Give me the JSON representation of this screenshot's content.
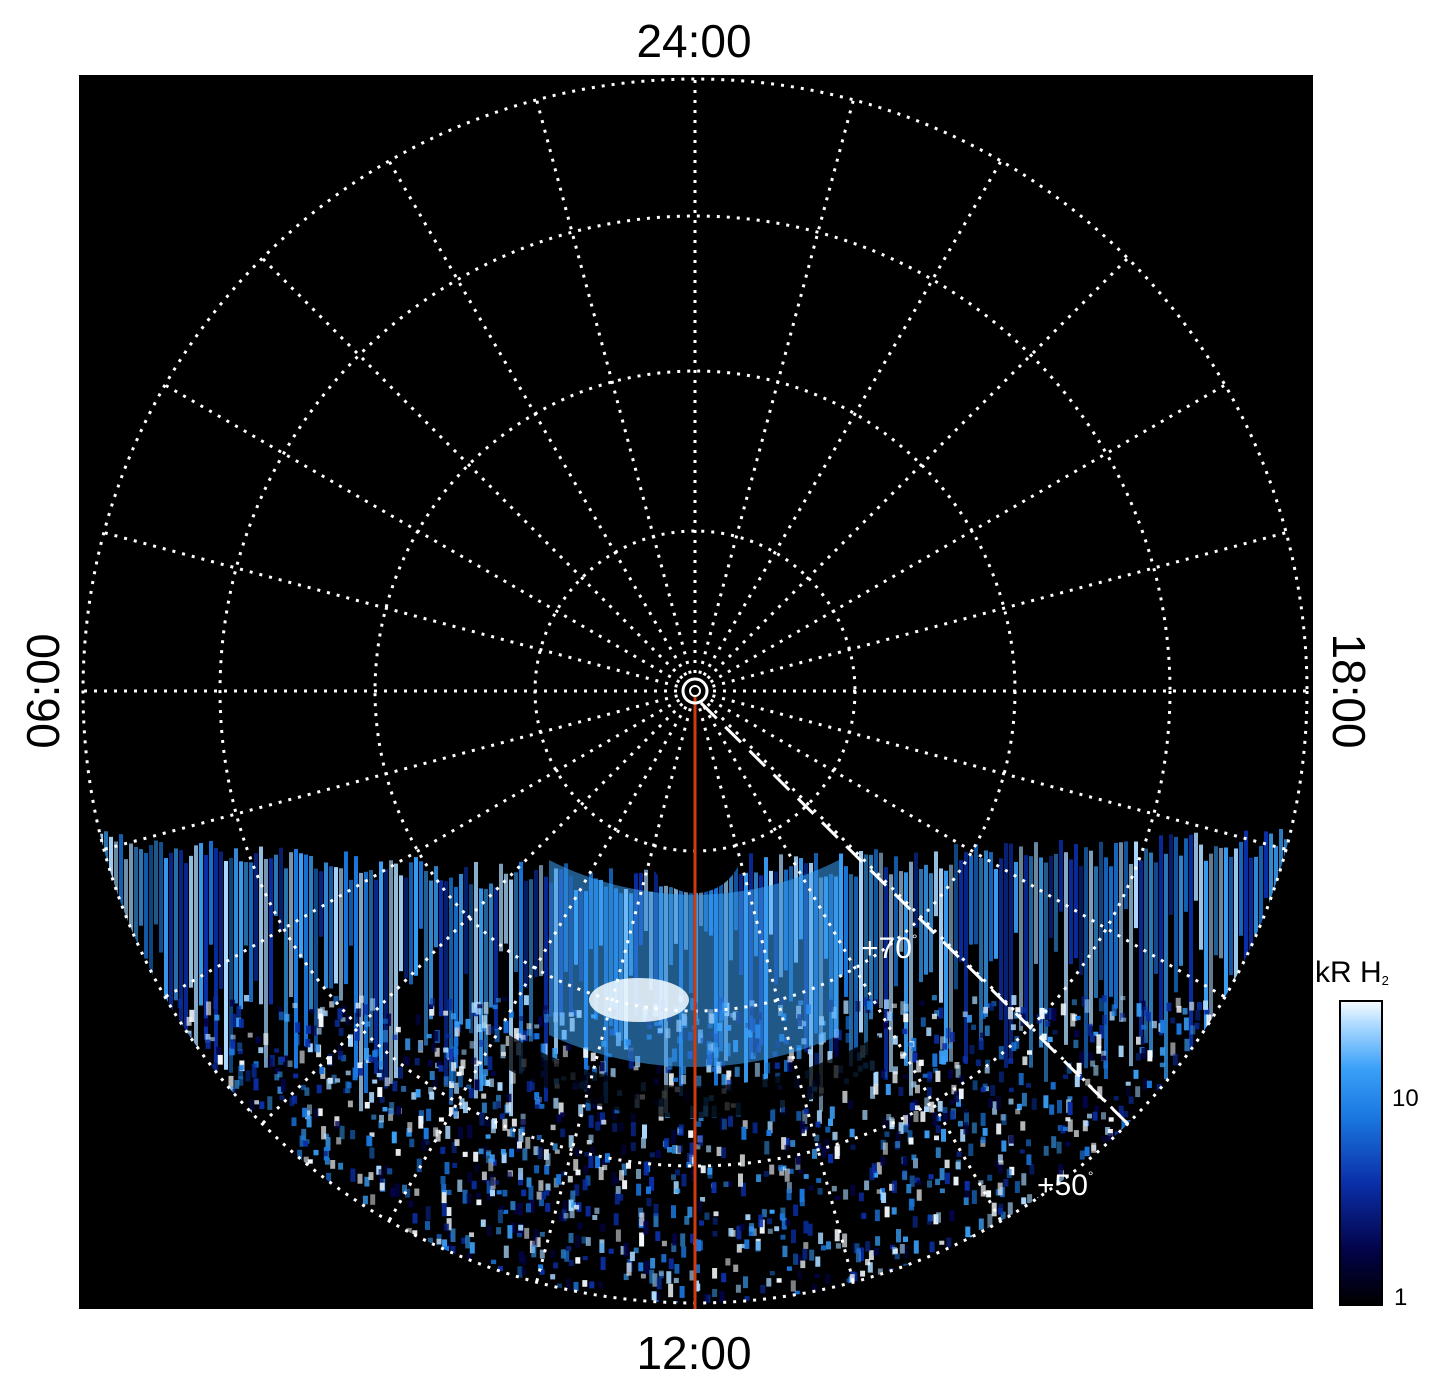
{
  "local_time_labels": {
    "top": "24:00",
    "bottom": "12:00",
    "left": "06:00",
    "right": "18:00"
  },
  "latitude_labels": {
    "inner": "+70",
    "outer": "+50",
    "degree_symbol": "°"
  },
  "colorbar": {
    "title": "kR H",
    "title_subscript": "2",
    "scale": "log",
    "range": [
      1,
      25
    ],
    "tick_labels": [
      "10",
      "1"
    ],
    "colors": [
      "#000000",
      "#03034a",
      "#0a2fa8",
      "#1a78e0",
      "#3aa0f8",
      "#a9d8ff",
      "#f5fbff"
    ]
  },
  "colors": {
    "background": "#000000",
    "grid": "#ffffff",
    "meridian_line": "#d03a10"
  }
}
